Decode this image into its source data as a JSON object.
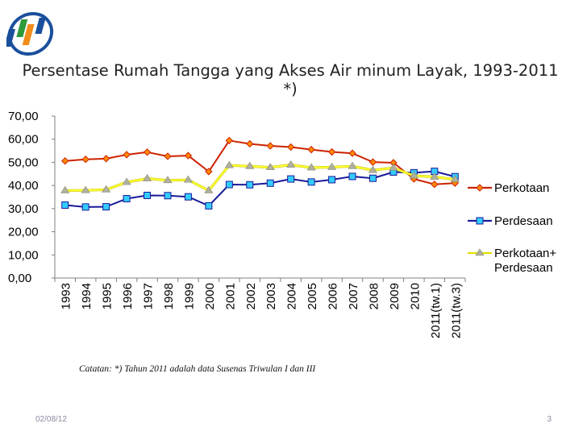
{
  "slide": {
    "title_line1": "Persentase Rumah Tangga yang Akses Air minum  Layak, 1993-2011",
    "title_line2": "*)",
    "note": "Catatan: *) Tahun 2011 adalah data Susenas Triwulan I dan III",
    "date": "02/08/12",
    "page_number": "3"
  },
  "chart_data": {
    "type": "line",
    "title": "",
    "xlabel": "",
    "ylabel": "",
    "ylim": [
      0,
      70
    ],
    "yticks": [
      "0,00",
      "10,00",
      "20,00",
      "30,00",
      "40,00",
      "50,00",
      "60,00",
      "70,00"
    ],
    "grid": false,
    "legend_position": "right",
    "categories": [
      "1993",
      "1994",
      "1995",
      "1996",
      "1997",
      "1998",
      "1999",
      "2000",
      "2001",
      "2002",
      "2003",
      "2004",
      "2005",
      "2006",
      "2007",
      "2008",
      "2009",
      "2010",
      "2011(tw.1)",
      "2011(tw.3)"
    ],
    "series": [
      {
        "name": "Perkotaan",
        "color": "#cc2200",
        "marker": "diamond",
        "marker_color": "#ff8800",
        "values": [
          50.6,
          51.3,
          51.6,
          53.3,
          54.4,
          52.6,
          52.9,
          46.0,
          59.4,
          58.0,
          57.1,
          56.6,
          55.5,
          54.5,
          53.9,
          50.1,
          49.8,
          42.8,
          40.5,
          41.0
        ]
      },
      {
        "name": "Perdesaan",
        "color": "#1a1a99",
        "marker": "square",
        "marker_color": "#33ccff",
        "values": [
          31.5,
          30.7,
          30.8,
          34.3,
          35.7,
          35.6,
          35.1,
          31.2,
          40.4,
          40.3,
          41.0,
          42.8,
          41.5,
          42.5,
          43.9,
          43.1,
          45.8,
          45.5,
          46.1,
          43.8
        ]
      },
      {
        "name": "Perkotaan+ Perdesaan",
        "color": "#ffff33",
        "marker": "triangle",
        "marker_color": "#b0b0a0",
        "values": [
          37.8,
          37.9,
          38.2,
          41.4,
          43.0,
          42.2,
          42.4,
          37.8,
          48.7,
          48.3,
          47.8,
          48.9,
          47.7,
          47.9,
          48.3,
          46.6,
          47.6,
          44.2,
          43.7,
          42.6
        ]
      }
    ]
  }
}
